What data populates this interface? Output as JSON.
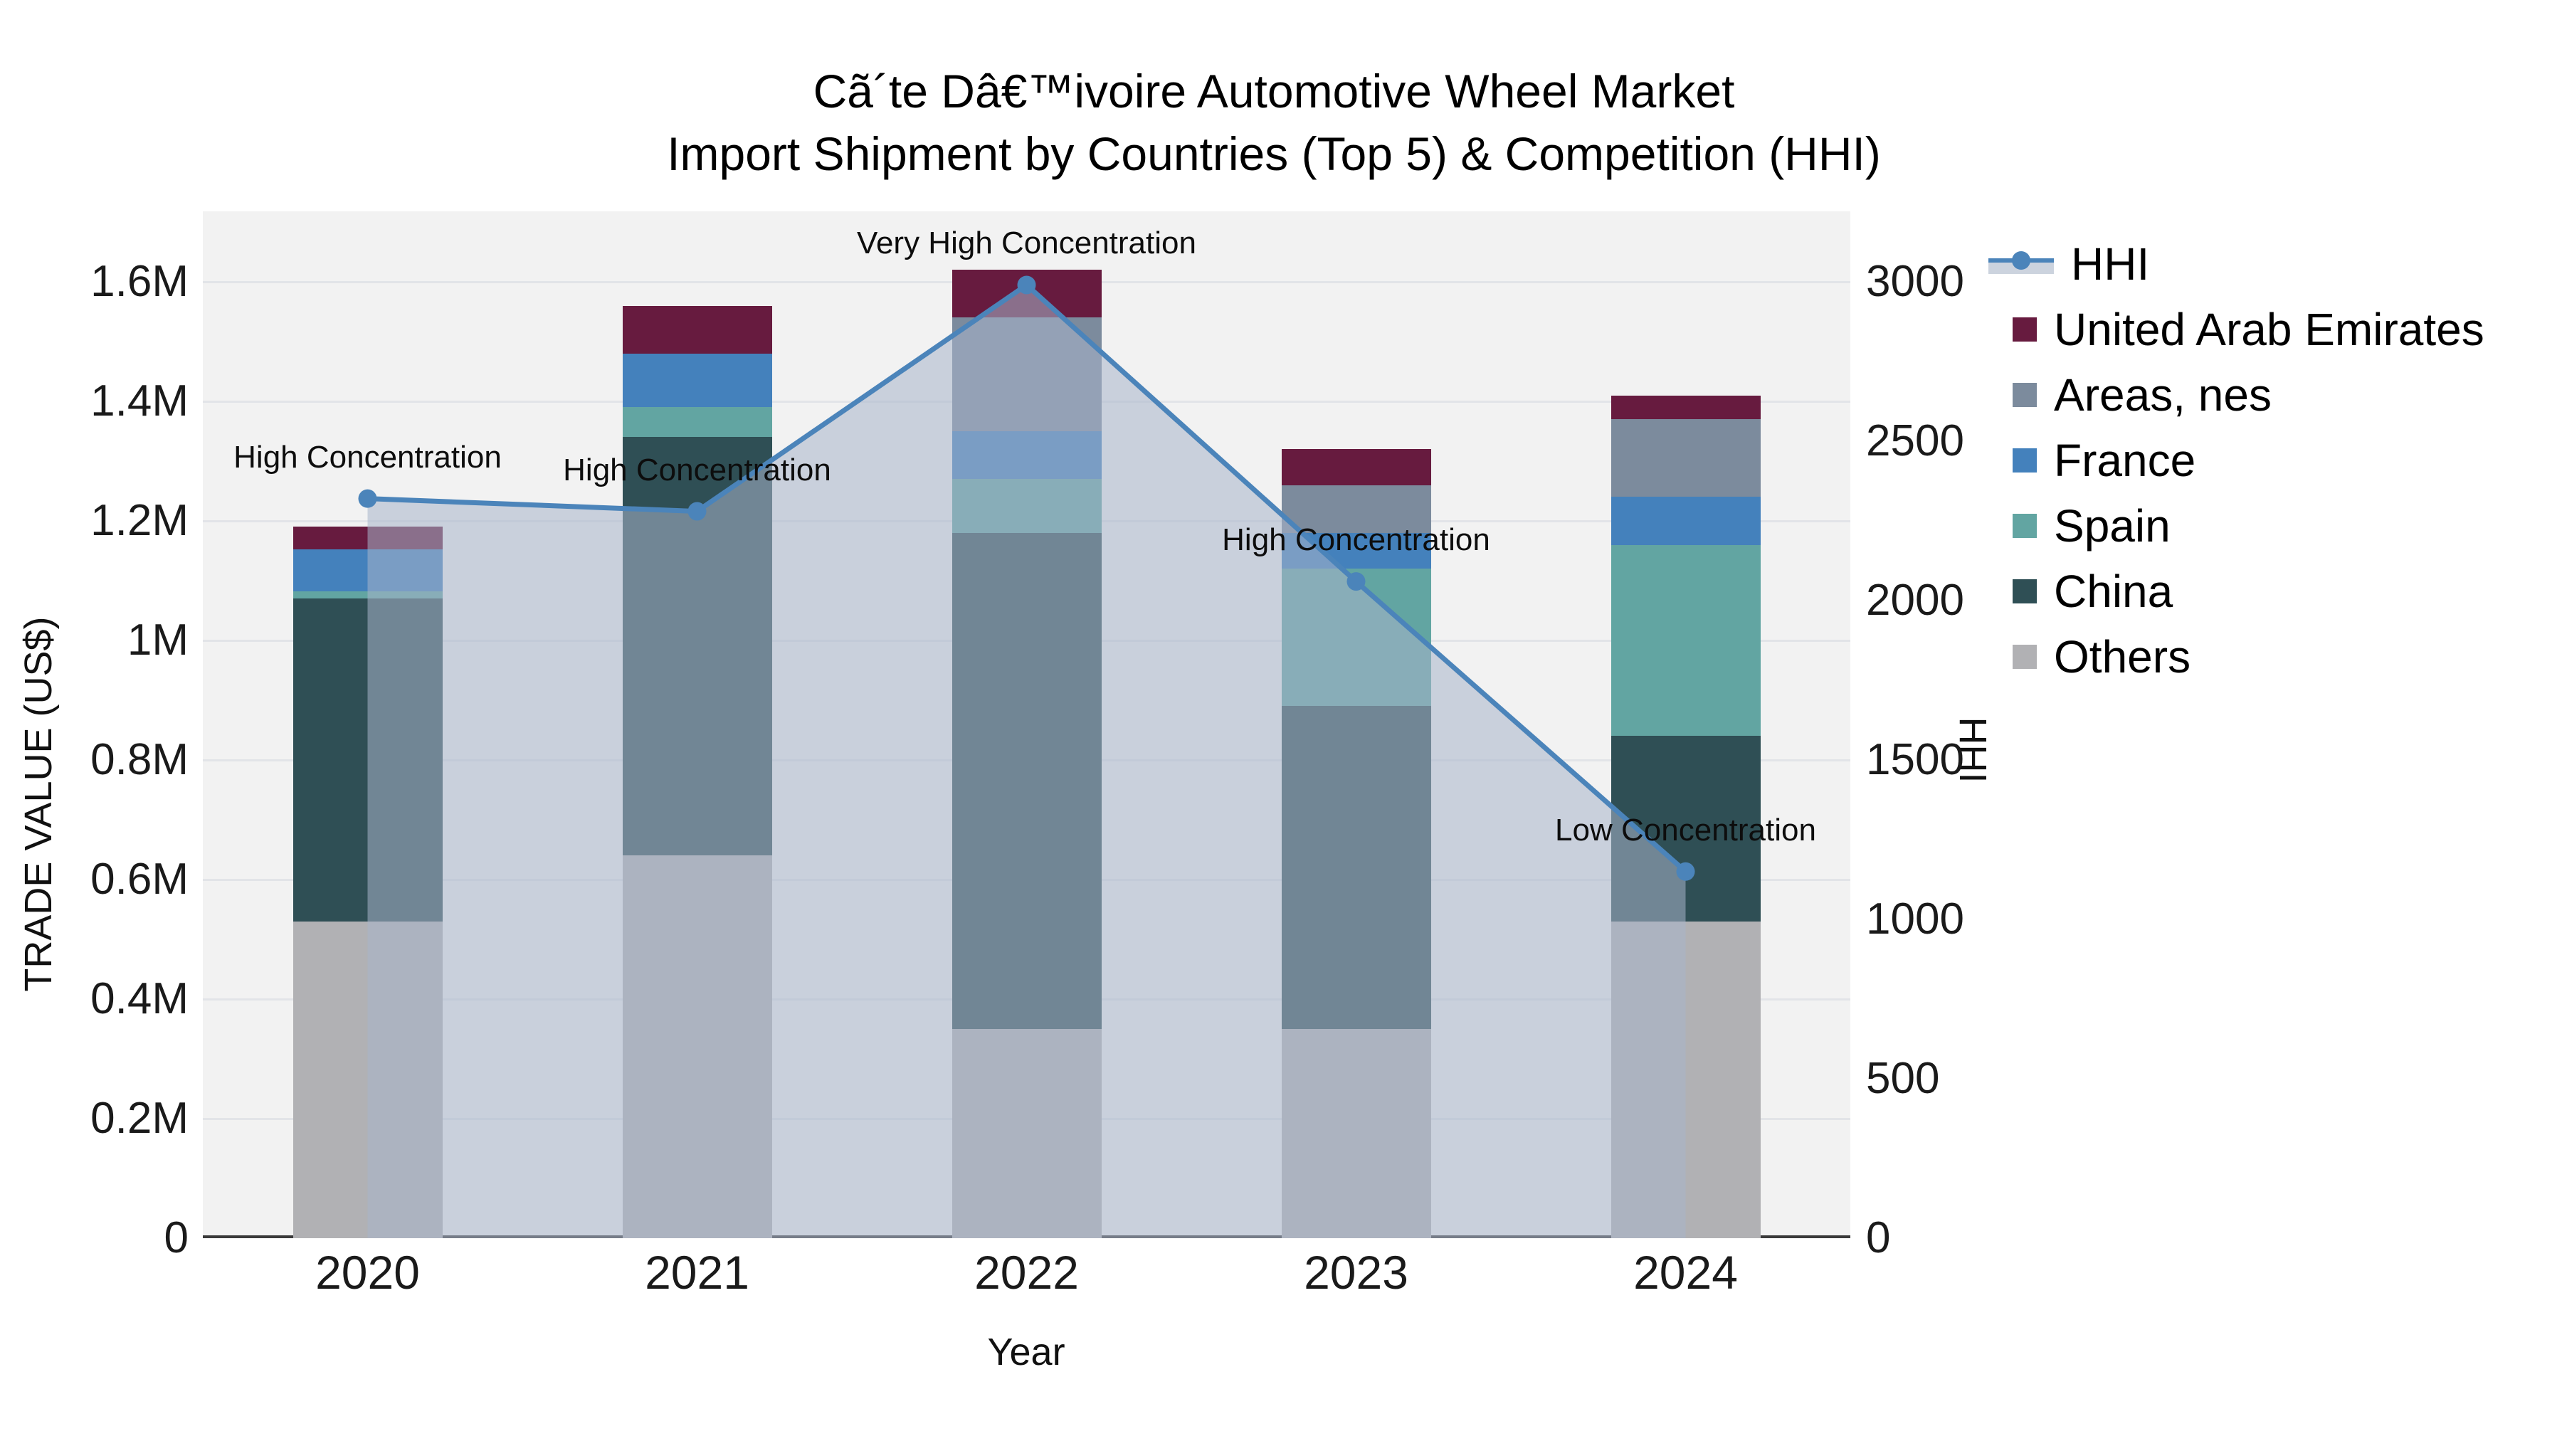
{
  "title": {
    "line1": "Cã´te Dâ€™ivoire Automotive Wheel Market",
    "line2": "Import Shipment by Countries (Top 5) & Competition (HHI)"
  },
  "axes": {
    "x_title": "Year",
    "y_left_title": "TRADE VALUE (US$)",
    "y_right_title": "HHI",
    "y_left_ticks": [
      {
        "label": "0",
        "value": 0
      },
      {
        "label": "0.2M",
        "value": 200000
      },
      {
        "label": "0.4M",
        "value": 400000
      },
      {
        "label": "0.6M",
        "value": 600000
      },
      {
        "label": "0.8M",
        "value": 800000
      },
      {
        "label": "1M",
        "value": 1000000
      },
      {
        "label": "1.2M",
        "value": 1200000
      },
      {
        "label": "1.4M",
        "value": 1400000
      },
      {
        "label": "1.6M",
        "value": 1600000
      }
    ],
    "y_right_ticks": [
      {
        "label": "0",
        "value": 0
      },
      {
        "label": "500",
        "value": 500
      },
      {
        "label": "1000",
        "value": 1000
      },
      {
        "label": "1500",
        "value": 1500
      },
      {
        "label": "2000",
        "value": 2000
      },
      {
        "label": "2500",
        "value": 2500
      },
      {
        "label": "3000",
        "value": 3000
      }
    ]
  },
  "legend": {
    "items": [
      {
        "label": "HHI",
        "type": "line",
        "color": "#4b84ba"
      },
      {
        "label": "United Arab Emirates",
        "type": "square",
        "color": "#671b3f"
      },
      {
        "label": "Areas, nes",
        "type": "square",
        "color": "#7c8b9d"
      },
      {
        "label": "France",
        "type": "square",
        "color": "#4481bc"
      },
      {
        "label": "Spain",
        "type": "square",
        "color": "#62a5a2"
      },
      {
        "label": "China",
        "type": "square",
        "color": "#2f4f55"
      },
      {
        "label": "Others",
        "type": "square",
        "color": "#b1b1b4"
      }
    ]
  },
  "annotations": [
    {
      "category": "2020",
      "text": "High Concentration"
    },
    {
      "category": "2021",
      "text": "High Concentration"
    },
    {
      "category": "2022",
      "text": "Very High Concentration"
    },
    {
      "category": "2023",
      "text": "High Concentration"
    },
    {
      "category": "2024",
      "text": "Low Concentration"
    }
  ],
  "colors": {
    "plot_bg": "#f2f2f2",
    "gridline": "#e2e4e8",
    "axis_line": "#3a3a3a",
    "hhi_line": "#4b84ba",
    "hhi_marker": "#4b84ba",
    "hhi_fill": "rgba(167,180,202,0.55)",
    "text": "#111111"
  },
  "chart_data": {
    "type": "bar",
    "subtype": "stacked-with-line-overlay",
    "title": "Cã´te Dâ€™ivoire Automotive Wheel Market — Import Shipment by Countries (Top 5) & Competition (HHI)",
    "xlabel": "Year",
    "ylabel_left": "TRADE VALUE (US$)",
    "ylabel_right": "HHI",
    "categories": [
      "2020",
      "2021",
      "2022",
      "2023",
      "2024"
    ],
    "series": [
      {
        "name": "Others",
        "values": [
          530000,
          640000,
          350000,
          350000,
          530000
        ],
        "color": "#b1b1b4"
      },
      {
        "name": "China",
        "values": [
          540000,
          700000,
          830000,
          540000,
          310000
        ],
        "color": "#2f4f55"
      },
      {
        "name": "Spain",
        "values": [
          12000,
          50000,
          90000,
          230000,
          320000
        ],
        "color": "#62a5a2"
      },
      {
        "name": "France",
        "values": [
          70000,
          90000,
          80000,
          60000,
          80000
        ],
        "color": "#4481bc"
      },
      {
        "name": "Areas, nes",
        "values": [
          0,
          0,
          190000,
          80000,
          130000
        ],
        "color": "#7c8b9d"
      },
      {
        "name": "United Arab Emirates",
        "values": [
          38000,
          80000,
          80000,
          60000,
          40000
        ],
        "color": "#671b3f"
      }
    ],
    "bar_totals": [
      1190000,
      1560000,
      1620000,
      1320000,
      1410000
    ],
    "line_series": {
      "name": "HHI",
      "values": [
        2320,
        2280,
        2990,
        2060,
        1150
      ],
      "axis": "right"
    },
    "ylim_left": [
      0,
      1600000
    ],
    "ylim_right": [
      0,
      3000
    ],
    "grid": "horizontal-left-axis",
    "legend_position": "right"
  }
}
